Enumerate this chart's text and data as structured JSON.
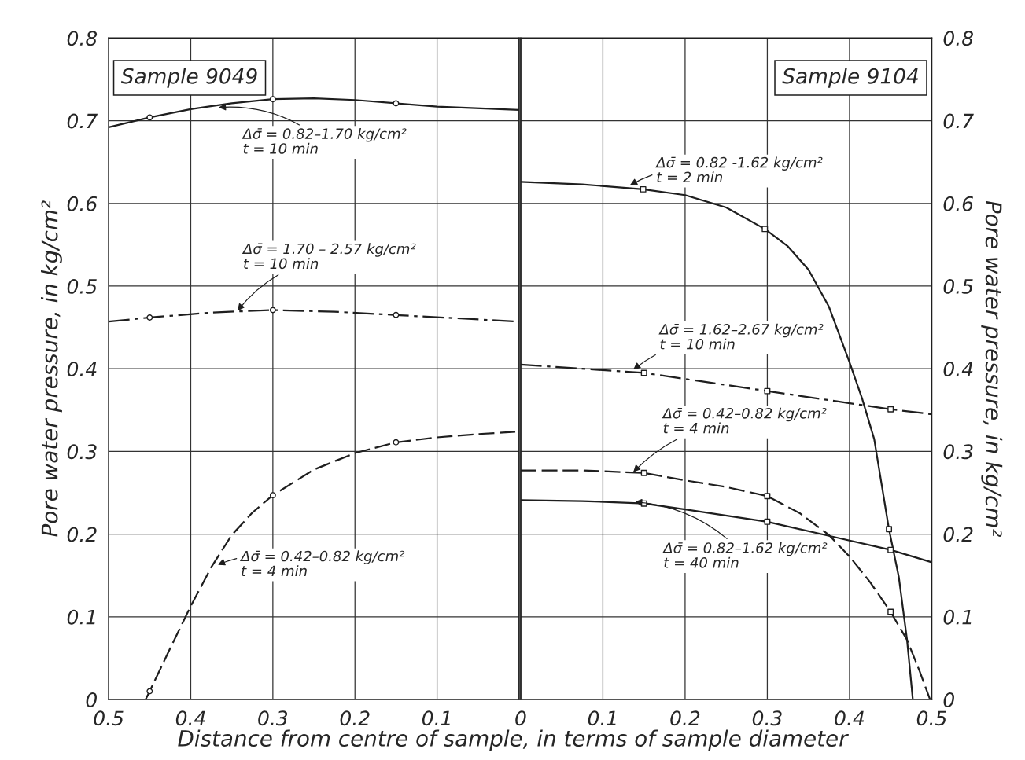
{
  "chart_data": [
    {
      "type": "line",
      "xlim": [
        0.5,
        0
      ],
      "xticks": [
        0.5,
        0.4,
        0.3,
        0.2,
        0.1,
        {
          "value": 0,
          "label": null
        }
      ],
      "ylim": [
        0,
        0.8
      ],
      "yticks": [
        0,
        0.1,
        0.2,
        0.3,
        0.4,
        0.5,
        0.6,
        0.7,
        0.8
      ],
      "grid": true,
      "ylabel": "Pore water pressure, in kg/cm²",
      "xlabel": "Distance from centre of sample, in terms of sample diameter",
      "series": [
        {
          "type": "line",
          "line_style": "solid",
          "color": "#1e1e1e",
          "x": [
            0.5,
            0.45,
            0.4,
            0.35,
            0.3,
            0.25,
            0.2,
            0.15,
            0.1,
            0
          ],
          "values": [
            0.692,
            0.704,
            0.714,
            0.721,
            0.726,
            0.727,
            0.725,
            0.721,
            0.717,
            0.713
          ]
        },
        {
          "type": "scatter",
          "marker": "circle",
          "color": "#1e1e1e",
          "x": [
            0.45,
            0.3,
            0.15
          ],
          "values": [
            0.704,
            0.726,
            0.721
          ]
        },
        {
          "type": "line",
          "line_style": "dashdot",
          "color": "#1e1e1e",
          "x": [
            0.5,
            0.45,
            0.375,
            0.3,
            0.225,
            0.15,
            0
          ],
          "values": [
            0.457,
            0.462,
            0.468,
            0.471,
            0.469,
            0.465,
            0.457
          ]
        },
        {
          "type": "scatter",
          "marker": "circle",
          "color": "#1e1e1e",
          "x": [
            0.45,
            0.3,
            0.15
          ],
          "values": [
            0.462,
            0.471,
            0.465
          ]
        },
        {
          "type": "line",
          "line_style": "dashed",
          "color": "#1e1e1e",
          "x": [
            0.455,
            0.45,
            0.425,
            0.4,
            0.375,
            0.35,
            0.325,
            0.3,
            0.25,
            0.2,
            0.15,
            0.1,
            0.05,
            0
          ],
          "values": [
            0,
            0.01,
            0.062,
            0.113,
            0.16,
            0.199,
            0.226,
            0.247,
            0.278,
            0.298,
            0.311,
            0.317,
            0.321,
            0.324
          ]
        },
        {
          "type": "scatter",
          "marker": "circle",
          "color": "#1e1e1e",
          "x": [
            0.45,
            0.3,
            0.15
          ],
          "values": [
            0.01,
            0.247,
            0.311
          ]
        }
      ],
      "annotations": [
        "Sample 9049",
        {
          "text": "Δσ̄ = 0.82–1.70 kg/cm²\nt = 10 min",
          "x": 0.366,
          "y": 0.716
        },
        {
          "text": "Δσ̄ = 1.70 – 2.57 kg/cm²\nt = 10 min",
          "x": 0.343,
          "y": 0.47
        },
        {
          "text": "Δσ̄ = 0.42–0.82 kg/cm²\nt = 4 min",
          "x": 0.367,
          "y": 0.163
        }
      ]
    },
    {
      "type": "line",
      "xlim": [
        0,
        0.5
      ],
      "xticks": [
        0,
        0.1,
        0.2,
        0.3,
        0.4,
        0.5
      ],
      "ylim": [
        0,
        0.8
      ],
      "yticks": [
        0,
        0.1,
        0.2,
        0.3,
        0.4,
        0.5,
        0.6,
        0.7,
        0.8
      ],
      "grid": true,
      "ylabel": "Pore water pressure, in kg/cm²",
      "series": [
        {
          "type": "line",
          "line_style": "solid",
          "color": "#1e1e1e",
          "x": [
            0,
            0.075,
            0.149,
            0.2,
            0.25,
            0.297,
            0.325,
            0.35,
            0.375,
            0.4,
            0.415,
            0.43,
            0.448,
            0.46,
            0.47,
            0.477
          ],
          "values": [
            0.626,
            0.623,
            0.617,
            0.61,
            0.595,
            0.569,
            0.548,
            0.52,
            0.475,
            0.408,
            0.365,
            0.315,
            0.206,
            0.148,
            0.072,
            0
          ]
        },
        {
          "type": "scatter",
          "marker": "square",
          "color": "#1e1e1e",
          "x": [
            0.149,
            0.297,
            0.448
          ],
          "values": [
            0.617,
            0.569,
            0.206
          ]
        },
        {
          "type": "line",
          "line_style": "dashdot",
          "color": "#1e1e1e",
          "x": [
            0,
            0.15,
            0.3,
            0.45,
            0.5
          ],
          "values": [
            0.405,
            0.395,
            0.373,
            0.351,
            0.345
          ]
        },
        {
          "type": "scatter",
          "marker": "square",
          "color": "#1e1e1e",
          "x": [
            0.15,
            0.3,
            0.45
          ],
          "values": [
            0.395,
            0.373,
            0.351
          ]
        },
        {
          "type": "line",
          "line_style": "dashed",
          "color": "#1e1e1e",
          "x": [
            0,
            0.075,
            0.15,
            0.2,
            0.25,
            0.3,
            0.34,
            0.375,
            0.4,
            0.425,
            0.45,
            0.47,
            0.485,
            0.498
          ],
          "values": [
            0.277,
            0.277,
            0.274,
            0.265,
            0.257,
            0.246,
            0.225,
            0.199,
            0.173,
            0.142,
            0.106,
            0.072,
            0.035,
            0
          ]
        },
        {
          "type": "scatter",
          "marker": "square",
          "color": "#1e1e1e",
          "x": [
            0.15,
            0.3,
            0.45
          ],
          "values": [
            0.274,
            0.246,
            0.106
          ]
        },
        {
          "type": "line",
          "line_style": "solid",
          "color": "#1e1e1e",
          "x": [
            0,
            0.075,
            0.15,
            0.2,
            0.3,
            0.375,
            0.45,
            0.5
          ],
          "values": [
            0.241,
            0.24,
            0.237,
            0.23,
            0.215,
            0.198,
            0.181,
            0.166
          ]
        },
        {
          "type": "scatter",
          "marker": "square",
          "color": "#1e1e1e",
          "x": [
            0.15,
            0.3,
            0.45
          ],
          "values": [
            0.237,
            0.215,
            0.181
          ]
        }
      ],
      "annotations": [
        "Sample 9104",
        {
          "text": "Δσ̄ = 0.82 -1.62 kg/cm²\nt = 2 min",
          "x": 0.133,
          "y": 0.622
        },
        {
          "text": "Δσ̄ = 1.62–2.67 kg/cm²\nt = 10 min",
          "x": 0.137,
          "y": 0.399
        },
        {
          "text": "Δσ̄ = 0.42–0.82 kg/cm²\nt = 4 min",
          "x": 0.137,
          "y": 0.275
        },
        {
          "text": "Δσ̄ = 0.82–1.62 kg/cm²\nt = 40 min",
          "x": 0.139,
          "y": 0.239
        }
      ]
    }
  ]
}
